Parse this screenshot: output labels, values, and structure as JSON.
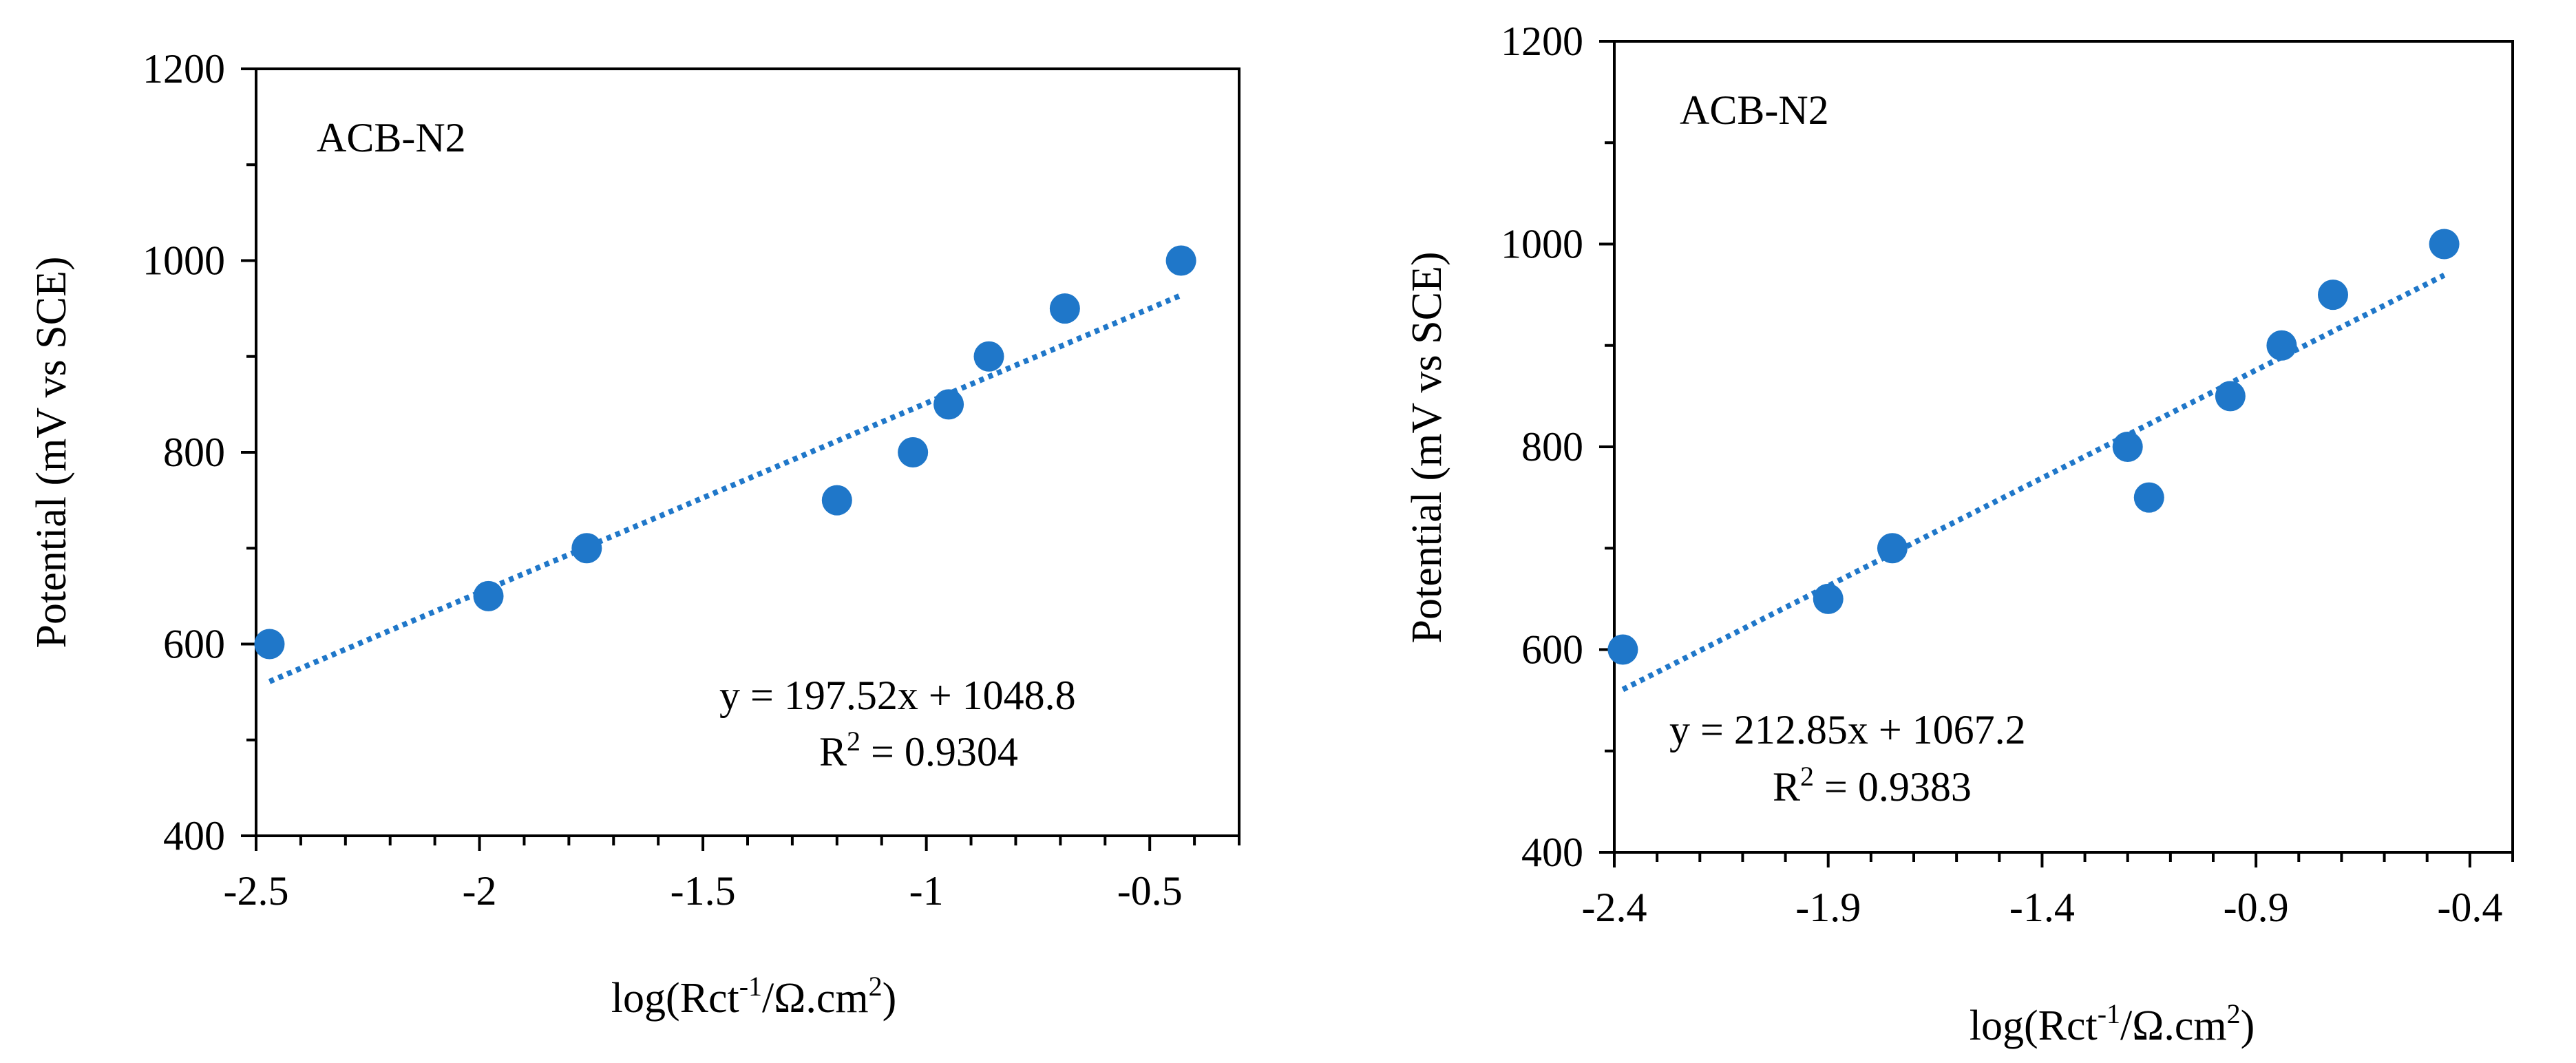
{
  "chart_data": [
    {
      "type": "scatter",
      "panel": "left",
      "label": "ACB-N2",
      "xlabel_parts": [
        "log(Rct",
        "-1",
        "/Ω.cm",
        "2",
        ")"
      ],
      "ylabel": "Potential (mV vs SCE)",
      "xlim": [
        -2.5,
        -0.3
      ],
      "ylim": [
        400,
        1200
      ],
      "xticks": [
        -2.5,
        -2,
        -1.5,
        -1,
        -0.5
      ],
      "xtick_labels": [
        "-2.5",
        "-2",
        "-1.5",
        "-1",
        "-0.5"
      ],
      "yticks": [
        400,
        600,
        800,
        1000,
        1200
      ],
      "ytick_labels": [
        "400",
        "600",
        "800",
        "1000",
        "1200"
      ],
      "y_minor_step": 100,
      "x_minor_step": 0.1,
      "series": [
        {
          "name": "data",
          "color": "#1f77c9",
          "points": [
            {
              "x": -2.47,
              "y": 600
            },
            {
              "x": -1.98,
              "y": 650
            },
            {
              "x": -1.76,
              "y": 700
            },
            {
              "x": -1.2,
              "y": 750
            },
            {
              "x": -1.03,
              "y": 800
            },
            {
              "x": -0.95,
              "y": 850
            },
            {
              "x": -0.86,
              "y": 900
            },
            {
              "x": -0.69,
              "y": 950
            },
            {
              "x": -0.43,
              "y": 1000
            }
          ]
        }
      ],
      "trendline": {
        "slope": 197.52,
        "intercept": 1048.8,
        "x_from": -2.47,
        "x_to": -0.43,
        "style": "dotted",
        "color": "#1f77c9",
        "equation": "y = 197.52x + 1048.8",
        "r2_prefix": "R",
        "r2_sup": "2",
        "r2_value": " = 0.9304"
      }
    },
    {
      "type": "scatter",
      "panel": "right",
      "label": "ACB-N2",
      "xlabel_parts": [
        "log(Rct",
        "-1",
        "/Ω.cm",
        "2",
        ")"
      ],
      "ylabel": "Potential (mV vs SCE)",
      "xlim": [
        -2.4,
        -0.3
      ],
      "ylim": [
        400,
        1200
      ],
      "xticks": [
        -2.4,
        -1.9,
        -1.4,
        -0.9,
        -0.4
      ],
      "xtick_labels": [
        "-2.4",
        "-1.9",
        "-1.4",
        "-0.9",
        "-0.4"
      ],
      "yticks": [
        400,
        600,
        800,
        1000,
        1200
      ],
      "ytick_labels": [
        "400",
        "600",
        "800",
        "1000",
        "1200"
      ],
      "y_minor_step": 100,
      "x_minor_step": 0.1,
      "series": [
        {
          "name": "data",
          "color": "#1f77c9",
          "points": [
            {
              "x": -2.38,
              "y": 600
            },
            {
              "x": -1.9,
              "y": 650
            },
            {
              "x": -1.75,
              "y": 700
            },
            {
              "x": -1.2,
              "y": 800
            },
            {
              "x": -1.15,
              "y": 750
            },
            {
              "x": -0.96,
              "y": 850
            },
            {
              "x": -0.84,
              "y": 900
            },
            {
              "x": -0.72,
              "y": 950
            },
            {
              "x": -0.46,
              "y": 1000
            }
          ]
        }
      ],
      "trendline": {
        "slope": 212.85,
        "intercept": 1067.2,
        "x_from": -2.38,
        "x_to": -0.46,
        "style": "dotted",
        "color": "#1f77c9",
        "equation": "y = 212.85x + 1067.2",
        "r2_prefix": "R",
        "r2_sup": "2",
        "r2_value": " = 0.9383"
      }
    }
  ]
}
